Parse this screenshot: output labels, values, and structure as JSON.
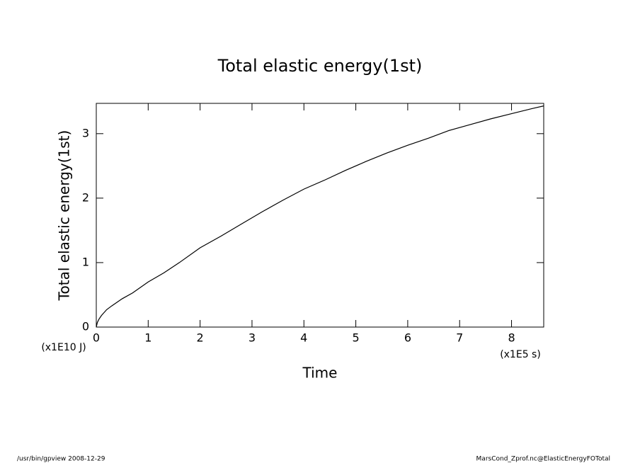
{
  "chart_data": {
    "type": "line",
    "title": "Total elastic energy(1st)",
    "x_label": "Time",
    "y_label": "Total elastic energy(1st)",
    "x_unit": "(x1E5 s)",
    "y_unit": "(x1E10 J)",
    "x": [
      0,
      0.02,
      0.05,
      0.1,
      0.2,
      0.3,
      0.5,
      0.7,
      1.0,
      1.3,
      1.6,
      2.0,
      2.4,
      2.8,
      3.2,
      3.6,
      4.0,
      4.4,
      4.8,
      5.2,
      5.6,
      6.0,
      6.4,
      6.8,
      7.2,
      7.6,
      8.0,
      8.4,
      8.62
    ],
    "series": [
      {
        "name": "Total elastic energy(1st)",
        "color": "#000000",
        "values": [
          0,
          0.07,
          0.12,
          0.18,
          0.27,
          0.33,
          0.44,
          0.53,
          0.7,
          0.84,
          1.0,
          1.23,
          1.41,
          1.6,
          1.79,
          1.97,
          2.14,
          2.28,
          2.43,
          2.57,
          2.7,
          2.82,
          2.93,
          3.05,
          3.14,
          3.23,
          3.31,
          3.39,
          3.43
        ]
      }
    ],
    "xlim": [
      0,
      8.62
    ],
    "ylim": [
      0,
      3.47
    ],
    "xticks": [
      0,
      1,
      2,
      3,
      4,
      5,
      6,
      7,
      8
    ],
    "yticks": [
      0,
      1,
      2,
      3
    ],
    "grid": false
  },
  "footer": {
    "left": "/usr/bin/gpview  2008-12-29",
    "right": "MarsCond_Zprof.nc@ElasticEnergyFOTotal"
  }
}
